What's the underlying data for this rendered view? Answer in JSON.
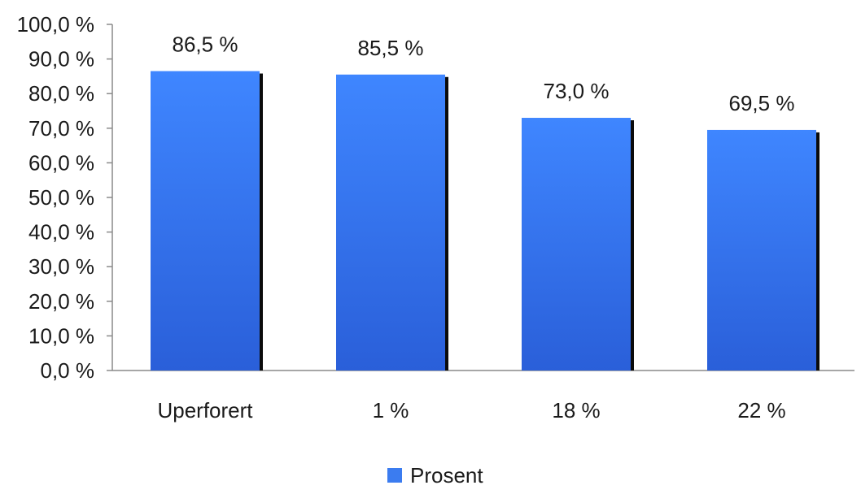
{
  "chart_data": {
    "type": "bar",
    "categories": [
      "Uperforert",
      "1 %",
      "18 %",
      "22 %"
    ],
    "series": [
      {
        "name": "Prosent",
        "values": [
          86.5,
          85.5,
          73.0,
          69.5
        ],
        "labels": [
          "86,5 %",
          "85,5 %",
          "73,0 %",
          "69,5 %"
        ],
        "color": "#3b7cf0"
      }
    ],
    "yticks": [
      "0,0 %",
      "10,0 %",
      "20,0 %",
      "30,0 %",
      "40,0 %",
      "50,0 %",
      "60,0 %",
      "70,0 %",
      "80,0 %",
      "90,0 %",
      "100,0 %"
    ],
    "ylim": [
      0,
      100
    ],
    "grid": false,
    "legend": "bottom"
  }
}
